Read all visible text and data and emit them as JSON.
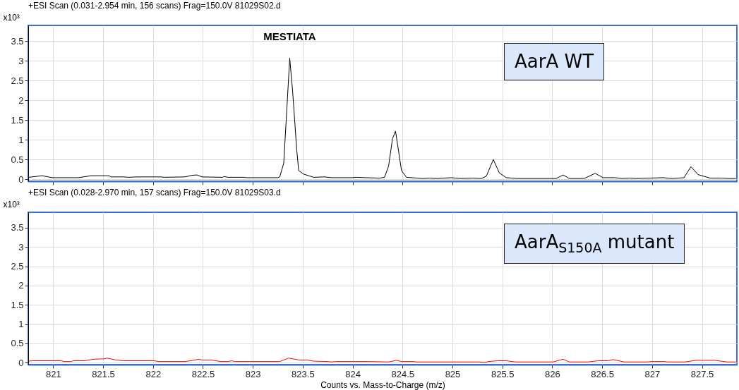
{
  "chart_data": [
    {
      "type": "line",
      "title": "+ESI Scan (0.031-2.954 min, 156 scans) Frag=150.0V 81029S02.d",
      "ylabel": "x10³",
      "annotations": [
        {
          "text": "MESTIATA",
          "x": 823.37,
          "y": 3.07
        },
        "AarA WT"
      ],
      "xlim": [
        820.75,
        827.85
      ],
      "xticks": [
        821,
        821.5,
        822,
        822.5,
        823,
        823.5,
        824,
        824.5,
        825,
        825.5,
        826,
        826.5,
        827,
        827.5
      ],
      "ylim": [
        -0.05,
        3.9
      ],
      "yticks": [
        0,
        0.5,
        1,
        1.5,
        2,
        2.5,
        3,
        3.5
      ],
      "grid": true,
      "tick_labels": "y",
      "series": [
        {
          "color": "#000000",
          "x": [
            820.755,
            820.89,
            820.99,
            821.25,
            821.38,
            821.56,
            821.58,
            821.71,
            821.75,
            821.84,
            822.08,
            822.11,
            822.32,
            822.39,
            822.44,
            822.49,
            822.7,
            822.71,
            822.75,
            822.91,
            822.94,
            823.25,
            823.27,
            823.31,
            823.37,
            823.4,
            823.44,
            823.46,
            823.51,
            823.61,
            823.72,
            823.79,
            823.99,
            824.04,
            824.13,
            824.27,
            824.32,
            824.36,
            824.4,
            824.43,
            824.49,
            824.54,
            824.7,
            824.77,
            824.84,
            824.99,
            825.08,
            825.2,
            825.29,
            825.34,
            825.41,
            825.47,
            825.54,
            825.65,
            826.04,
            826.11,
            826.17,
            826.32,
            826.43,
            826.51,
            826.63,
            826.7,
            826.77,
            826.84,
            827.11,
            827.2,
            827.32,
            827.39,
            827.46,
            827.58,
            827.7,
            827.77,
            827.84
          ],
          "values": [
            0.05,
            0.09,
            0.04,
            0.04,
            0.09,
            0.09,
            0.06,
            0.06,
            0.05,
            0.06,
            0.06,
            0.05,
            0.06,
            0.1,
            0.11,
            0.06,
            0.05,
            0.07,
            0.05,
            0.05,
            0.04,
            0.04,
            0.06,
            0.41,
            3.07,
            2.2,
            0.75,
            0.22,
            0.13,
            0.05,
            0.06,
            0.04,
            0.04,
            0.05,
            0.04,
            0.03,
            0.05,
            0.33,
            1.03,
            1.22,
            0.22,
            0.05,
            0.02,
            0.03,
            0.02,
            0.04,
            0.02,
            0.03,
            0.02,
            0.08,
            0.5,
            0.16,
            0.04,
            0.02,
            0.02,
            0.11,
            0.02,
            0.02,
            0.15,
            0.04,
            0.04,
            0.02,
            0.03,
            0.02,
            0.04,
            0.02,
            0.04,
            0.32,
            0.12,
            0.03,
            0.03,
            0.02,
            0.02
          ]
        }
      ]
    },
    {
      "type": "line",
      "title": "+ESI Scan (0.028-2.970 min, 157 scans) Frag=150.0V 81029S03.d",
      "xlabel": "Counts vs. Mass-to-Charge (m/z)",
      "ylabel": "x10³",
      "annotations": [
        "AarA$_{S150A}$ mutant"
      ],
      "xlim": [
        820.75,
        827.85
      ],
      "xticks": [
        821,
        821.5,
        822,
        822.5,
        823,
        823.5,
        824,
        824.5,
        825,
        825.5,
        826,
        826.5,
        827,
        827.5
      ],
      "ylim": [
        -0.05,
        3.9
      ],
      "yticks": [
        0,
        0.5,
        1,
        1.5,
        2,
        2.5,
        3,
        3.5
      ],
      "grid": true,
      "series": [
        {
          "color": "#ff0000",
          "x": [
            820.755,
            820.79,
            821.08,
            821.11,
            821.18,
            821.2,
            821.31,
            821.41,
            821.51,
            821.54,
            821.63,
            821.7,
            822.01,
            822.06,
            822.32,
            822.4,
            822.46,
            822.49,
            822.58,
            822.68,
            822.75,
            822.79,
            822.82,
            823.27,
            823.31,
            823.36,
            823.46,
            823.54,
            823.61,
            823.75,
            823.79,
            823.83,
            824.15,
            824.36,
            824.44,
            824.49,
            824.61,
            824.64,
            825.27,
            825.32,
            825.36,
            825.45,
            825.54,
            825.63,
            826.01,
            826.11,
            826.17,
            826.36,
            826.46,
            826.56,
            826.61,
            826.72,
            826.96,
            826.99,
            827.13,
            827.15,
            827.33,
            827.44,
            827.63,
            827.75,
            827.84
          ],
          "values": [
            0.04,
            0.05,
            0.05,
            0.03,
            0.03,
            0.05,
            0.05,
            0.09,
            0.1,
            0.12,
            0.07,
            0.05,
            0.05,
            0.03,
            0.03,
            0.06,
            0.09,
            0.07,
            0.07,
            0.03,
            0.03,
            0.05,
            0.03,
            0.03,
            0.07,
            0.12,
            0.07,
            0.07,
            0.04,
            0.03,
            0.02,
            0.03,
            0.03,
            0.02,
            0.06,
            0.03,
            0.03,
            0.02,
            0.02,
            0.0,
            0.03,
            0.05,
            0.05,
            0.02,
            0.02,
            0.09,
            0.02,
            0.02,
            0.05,
            0.05,
            0.08,
            0.02,
            0.02,
            0.03,
            0.03,
            0.02,
            0.02,
            0.06,
            0.06,
            0.02,
            0.02
          ]
        }
      ]
    }
  ]
}
